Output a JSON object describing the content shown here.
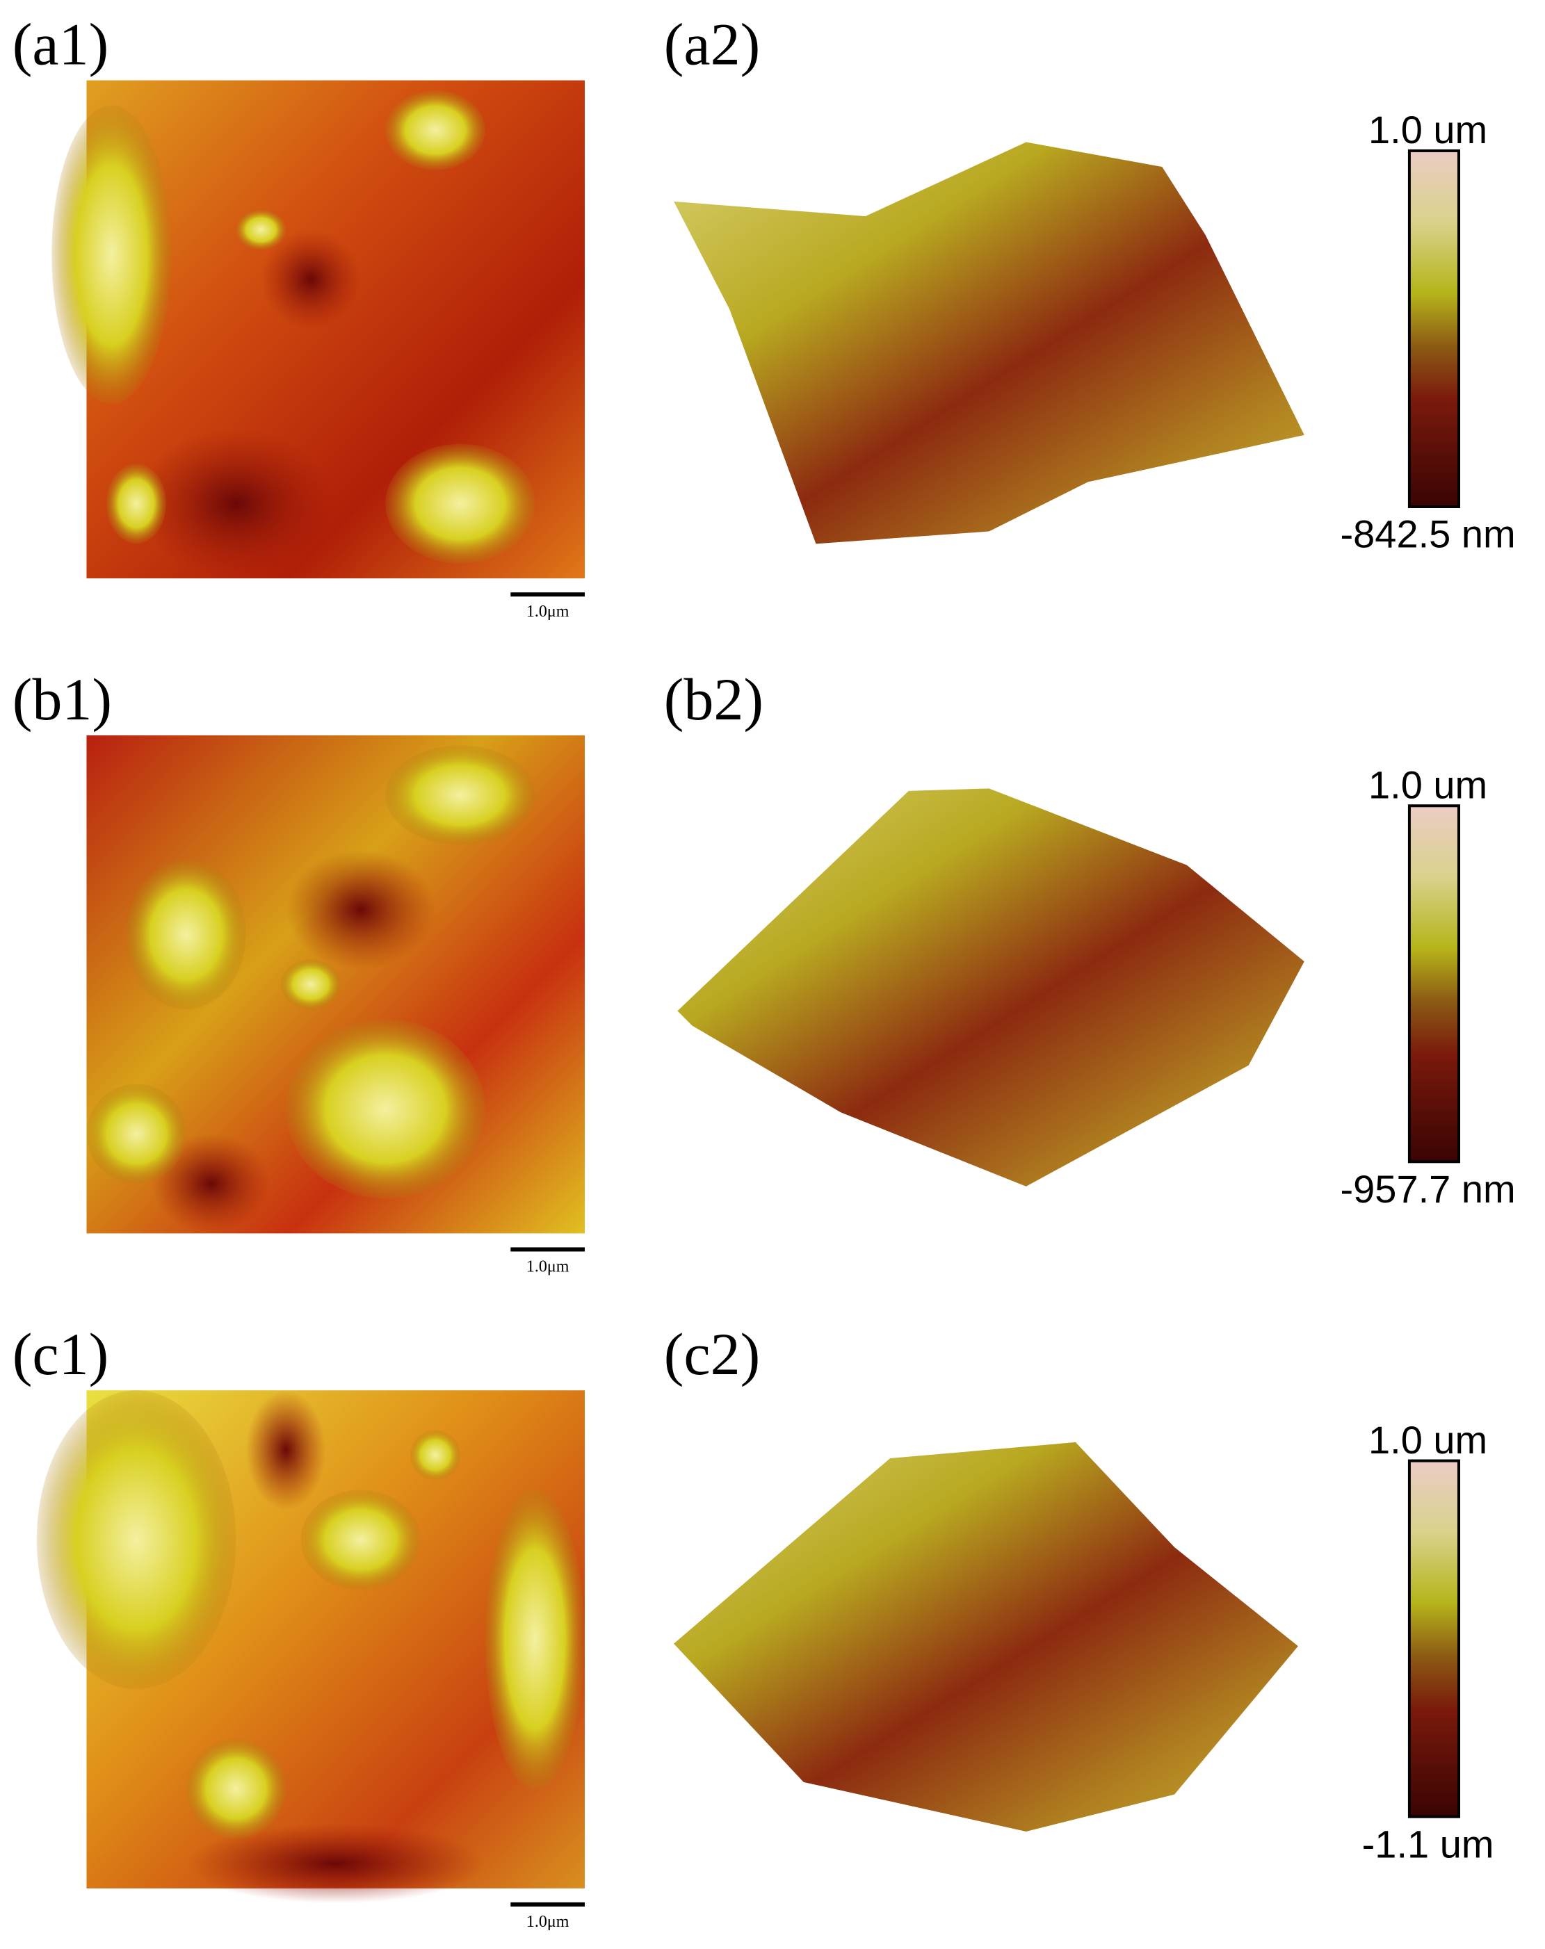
{
  "panels": [
    {
      "label_2d": "(a1)",
      "label_3d": "(a2)",
      "scale_bar": "1.0μm",
      "colorbar_max": "1.0 um",
      "colorbar_min": "-842.5 nm"
    },
    {
      "label_2d": "(b1)",
      "label_3d": "(b2)",
      "scale_bar": "1.0μm",
      "colorbar_max": "1.0 um",
      "colorbar_min": "-957.7 nm"
    },
    {
      "label_2d": "(c1)",
      "label_3d": "(c2)",
      "scale_bar": "1.0μm",
      "colorbar_max": "1.0 um",
      "colorbar_min": "-1.1 um"
    }
  ]
}
